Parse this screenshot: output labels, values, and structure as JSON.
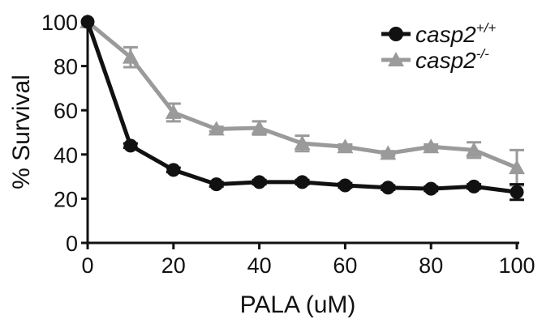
{
  "chart_data": {
    "type": "line",
    "title": "",
    "xlabel": "PALA (uM)",
    "ylabel": "% Survival",
    "xlim": [
      0,
      100
    ],
    "ylim": [
      0,
      100
    ],
    "xticks": [
      "0",
      "20",
      "40",
      "60",
      "80",
      "100"
    ],
    "yticks": [
      "0",
      "20",
      "40",
      "60",
      "80",
      "100"
    ],
    "grid": false,
    "legend_position": "top-right",
    "x": [
      0,
      10,
      20,
      30,
      40,
      50,
      60,
      70,
      80,
      90,
      100
    ],
    "series": [
      {
        "name_base": "casp2",
        "name_sup": "+/+",
        "marker": "circle",
        "color": "#111111",
        "values": [
          100,
          44,
          33,
          26.5,
          27.5,
          27.5,
          26,
          25,
          24.5,
          25.5,
          23
        ],
        "errors": [
          0,
          1,
          1,
          1,
          1,
          1,
          1,
          1,
          1,
          1,
          3.5
        ]
      },
      {
        "name_base": "casp2",
        "name_sup": "-/-",
        "marker": "triangle",
        "color": "#9a9a9a",
        "values": [
          100,
          84,
          59,
          51.5,
          52,
          45,
          43.5,
          40.5,
          43.5,
          42,
          34
        ],
        "errors": [
          0,
          4.5,
          4,
          1,
          3,
          3.5,
          1,
          1,
          1,
          3.5,
          8
        ]
      }
    ]
  }
}
